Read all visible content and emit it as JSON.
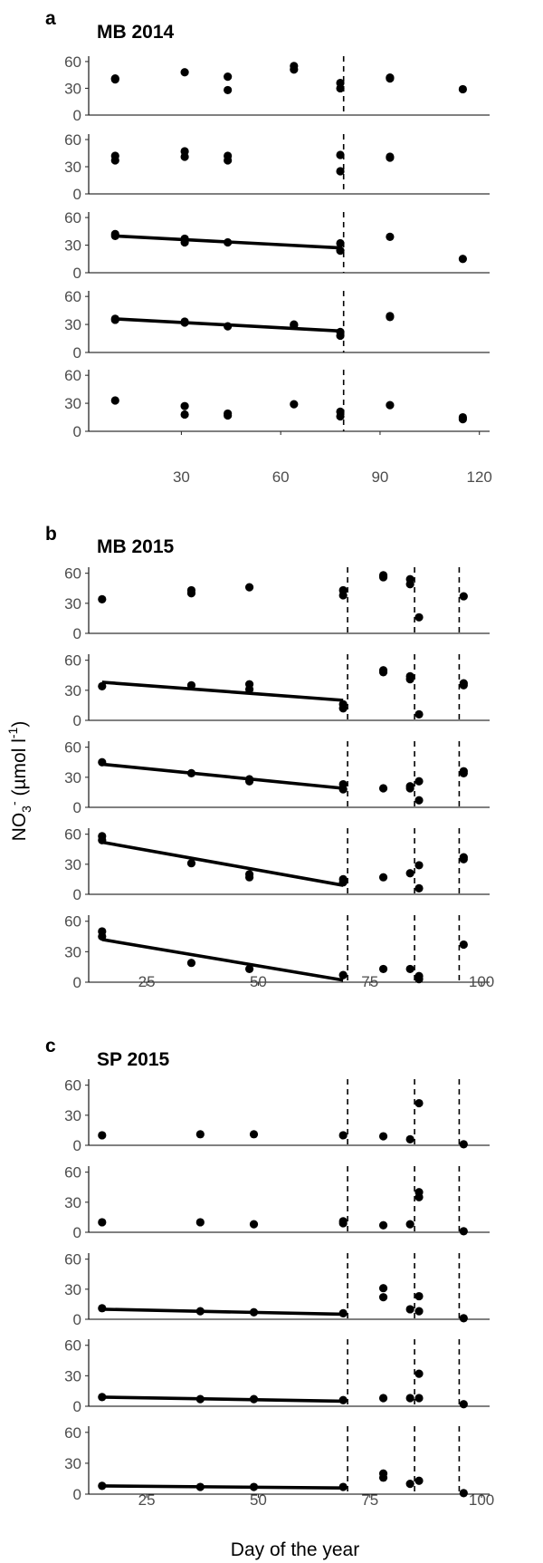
{
  "figure": {
    "ylabel": "NO3- (µmol l-1)",
    "ylabel_main": "NO",
    "ylabel_sub": "3",
    "ylabel_sup": "-",
    "ylabel_unit": " (µmol l",
    "ylabel_unit_sup": "-1",
    "ylabel_close": ")",
    "xlabel": "Day of the year"
  },
  "chart_data": [
    {
      "type": "scatter",
      "panel": "a",
      "title": "MB 2014",
      "xlim": [
        2,
        122
      ],
      "ylim": [
        0,
        66
      ],
      "xticks": [
        30,
        60,
        90,
        120
      ],
      "yticks": [
        0,
        30,
        60
      ],
      "dashed_x": [
        79
      ],
      "rows": [
        {
          "points": [
            [
              10,
              40
            ],
            [
              10,
              41
            ],
            [
              31,
              48
            ],
            [
              44,
              28
            ],
            [
              44,
              43
            ],
            [
              64,
              51
            ],
            [
              64,
              55
            ],
            [
              78,
              30
            ],
            [
              78,
              36
            ],
            [
              93,
              41
            ],
            [
              93,
              42
            ],
            [
              115,
              29
            ]
          ],
          "trend": null
        },
        {
          "points": [
            [
              10,
              37
            ],
            [
              10,
              42
            ],
            [
              31,
              41
            ],
            [
              31,
              47
            ],
            [
              44,
              37
            ],
            [
              44,
              42
            ],
            [
              78,
              25
            ],
            [
              78,
              43
            ],
            [
              93,
              40
            ],
            [
              93,
              41
            ]
          ],
          "trend": null
        },
        {
          "points": [
            [
              10,
              40
            ],
            [
              10,
              42
            ],
            [
              31,
              33
            ],
            [
              31,
              37
            ],
            [
              44,
              33
            ],
            [
              78,
              24
            ],
            [
              78,
              32
            ],
            [
              93,
              39
            ],
            [
              115,
              15
            ]
          ],
          "trend": [
            [
              10,
              40
            ],
            [
              78,
              27
            ]
          ]
        },
        {
          "points": [
            [
              10,
              35
            ],
            [
              10,
              36
            ],
            [
              31,
              32
            ],
            [
              31,
              33
            ],
            [
              44,
              28
            ],
            [
              64,
              29
            ],
            [
              64,
              30
            ],
            [
              78,
              18
            ],
            [
              78,
              22
            ],
            [
              93,
              38
            ],
            [
              93,
              39
            ]
          ],
          "trend": [
            [
              10,
              36
            ],
            [
              78,
              23
            ]
          ]
        },
        {
          "points": [
            [
              10,
              33
            ],
            [
              31,
              18
            ],
            [
              31,
              27
            ],
            [
              44,
              17
            ],
            [
              44,
              19
            ],
            [
              64,
              29
            ],
            [
              78,
              16
            ],
            [
              78,
              21
            ],
            [
              93,
              28
            ],
            [
              115,
              13
            ],
            [
              115,
              15
            ]
          ],
          "trend": null
        }
      ]
    },
    {
      "type": "scatter",
      "panel": "b",
      "title": "MB 2015",
      "xlim": [
        12,
        101
      ],
      "ylim": [
        0,
        66
      ],
      "xticks": [
        25,
        50,
        75,
        100
      ],
      "yticks": [
        0,
        30,
        60
      ],
      "dashed_x": [
        70,
        85,
        95
      ],
      "rows": [
        {
          "points": [
            [
              15,
              34
            ],
            [
              35,
              40
            ],
            [
              35,
              43
            ],
            [
              48,
              46
            ],
            [
              69,
              38
            ],
            [
              69,
              43
            ],
            [
              78,
              56
            ],
            [
              78,
              58
            ],
            [
              84,
              49
            ],
            [
              84,
              54
            ],
            [
              86,
              16
            ],
            [
              96,
              37
            ]
          ],
          "trend": null
        },
        {
          "points": [
            [
              15,
              34
            ],
            [
              35,
              35
            ],
            [
              48,
              31
            ],
            [
              48,
              36
            ],
            [
              69,
              12
            ],
            [
              69,
              16
            ],
            [
              78,
              48
            ],
            [
              78,
              50
            ],
            [
              84,
              41
            ],
            [
              84,
              44
            ],
            [
              86,
              6
            ],
            [
              96,
              35
            ],
            [
              96,
              37
            ]
          ],
          "trend": [
            [
              15,
              38
            ],
            [
              69,
              20
            ]
          ]
        },
        {
          "points": [
            [
              15,
              45
            ],
            [
              35,
              34
            ],
            [
              48,
              26
            ],
            [
              48,
              28
            ],
            [
              69,
              18
            ],
            [
              69,
              23
            ],
            [
              78,
              19
            ],
            [
              84,
              19
            ],
            [
              84,
              21
            ],
            [
              86,
              7
            ],
            [
              86,
              26
            ],
            [
              96,
              34
            ],
            [
              96,
              36
            ]
          ],
          "trend": [
            [
              15,
              43
            ],
            [
              69,
              19
            ]
          ]
        },
        {
          "points": [
            [
              15,
              54
            ],
            [
              15,
              58
            ],
            [
              35,
              31
            ],
            [
              48,
              17
            ],
            [
              48,
              20
            ],
            [
              69,
              12
            ],
            [
              69,
              15
            ],
            [
              78,
              17
            ],
            [
              84,
              21
            ],
            [
              86,
              6
            ],
            [
              86,
              29
            ],
            [
              96,
              35
            ],
            [
              96,
              37
            ]
          ],
          "trend": [
            [
              15,
              52
            ],
            [
              69,
              9
            ]
          ]
        },
        {
          "points": [
            [
              15,
              45
            ],
            [
              15,
              50
            ],
            [
              35,
              19
            ],
            [
              48,
              13
            ],
            [
              69,
              7
            ],
            [
              78,
              13
            ],
            [
              84,
              13
            ],
            [
              86,
              3
            ],
            [
              86,
              6
            ],
            [
              96,
              37
            ]
          ],
          "trend": [
            [
              15,
              42
            ],
            [
              69,
              2
            ]
          ]
        }
      ]
    },
    {
      "type": "scatter",
      "panel": "c",
      "title": "SP 2015",
      "xlim": [
        12,
        101
      ],
      "ylim": [
        0,
        66
      ],
      "xticks": [
        25,
        50,
        75,
        100
      ],
      "yticks": [
        0,
        30,
        60
      ],
      "dashed_x": [
        70,
        85,
        95
      ],
      "rows": [
        {
          "points": [
            [
              15,
              10
            ],
            [
              37,
              11
            ],
            [
              49,
              11
            ],
            [
              69,
              10
            ],
            [
              78,
              9
            ],
            [
              84,
              6
            ],
            [
              86,
              42
            ],
            [
              96,
              1
            ]
          ],
          "trend": null
        },
        {
          "points": [
            [
              15,
              10
            ],
            [
              37,
              10
            ],
            [
              49,
              8
            ],
            [
              69,
              9
            ],
            [
              69,
              11
            ],
            [
              78,
              7
            ],
            [
              84,
              8
            ],
            [
              86,
              35
            ],
            [
              86,
              40
            ],
            [
              96,
              1
            ]
          ],
          "trend": null
        },
        {
          "points": [
            [
              15,
              11
            ],
            [
              37,
              8
            ],
            [
              49,
              7
            ],
            [
              69,
              6
            ],
            [
              78,
              22
            ],
            [
              78,
              31
            ],
            [
              84,
              10
            ],
            [
              86,
              8
            ],
            [
              86,
              23
            ],
            [
              96,
              1
            ]
          ],
          "trend": [
            [
              15,
              10
            ],
            [
              69,
              5
            ]
          ]
        },
        {
          "points": [
            [
              15,
              9
            ],
            [
              37,
              7
            ],
            [
              49,
              7
            ],
            [
              69,
              6
            ],
            [
              78,
              8
            ],
            [
              84,
              8
            ],
            [
              86,
              8
            ],
            [
              86,
              32
            ],
            [
              96,
              2
            ]
          ],
          "trend": [
            [
              15,
              9
            ],
            [
              69,
              5
            ]
          ]
        },
        {
          "points": [
            [
              15,
              8
            ],
            [
              37,
              7
            ],
            [
              49,
              7
            ],
            [
              69,
              7
            ],
            [
              78,
              16
            ],
            [
              78,
              20
            ],
            [
              84,
              10
            ],
            [
              86,
              13
            ],
            [
              96,
              1
            ]
          ],
          "trend": [
            [
              15,
              8
            ],
            [
              69,
              6
            ]
          ]
        }
      ]
    }
  ]
}
